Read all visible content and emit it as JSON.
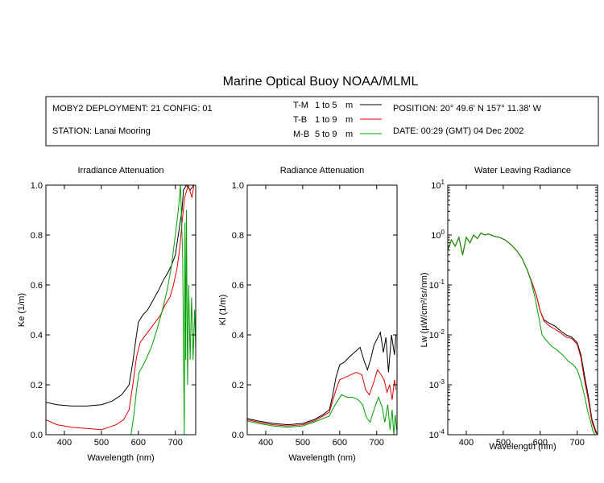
{
  "title": "Marine Optical Buoy NOAA/MLML",
  "info": {
    "deployment": "MOBY2 DEPLOYMENT: 21 CONFIG: 01",
    "station": "STATION: Lanai Mooring",
    "position": "POSITION: 20° 49.6' N   157° 11.38' W",
    "date": "DATE: 00:29 (GMT) 04 Dec 2002",
    "legend": [
      {
        "code": "T-M",
        "range": "1 to 5",
        "unit": "m",
        "color": "#000000"
      },
      {
        "code": "T-B",
        "range": "1 to 9",
        "unit": "m",
        "color": "#e00000"
      },
      {
        "code": "M-B",
        "range": "5 to 9",
        "unit": "m",
        "color": "#00a000"
      }
    ]
  },
  "chart_data": [
    {
      "type": "line",
      "title": "Irradiance Attenuation",
      "xlabel": "Wavelength (nm)",
      "ylabel": "Ke  (1/m)",
      "xlim": [
        350,
        755
      ],
      "ylim": [
        0,
        1.0
      ],
      "xticks": [
        400,
        500,
        600,
        700
      ],
      "yticks": [
        "0.0",
        "0.2",
        "0.4",
        "0.6",
        "0.8",
        "1.0"
      ],
      "yscale": "linear",
      "series": [
        {
          "name": "T-M",
          "color": "#000000",
          "x": [
            350,
            380,
            420,
            460,
            500,
            530,
            555,
            575,
            585,
            593,
            600,
            612,
            625,
            640,
            655,
            668,
            680,
            690,
            700,
            710,
            718,
            722,
            730,
            740,
            750
          ],
          "y": [
            0.13,
            0.12,
            0.115,
            0.115,
            0.12,
            0.135,
            0.16,
            0.2,
            0.29,
            0.38,
            0.45,
            0.48,
            0.5,
            0.54,
            0.58,
            0.62,
            0.65,
            0.68,
            0.72,
            0.82,
            0.9,
            0.98,
            1.0,
            0.98,
            1.0
          ]
        },
        {
          "name": "T-B",
          "color": "#e00000",
          "x": [
            350,
            380,
            420,
            460,
            500,
            520,
            540,
            560,
            575,
            585,
            595,
            605,
            615,
            630,
            645,
            660,
            672,
            685,
            695,
            705,
            712,
            718,
            725,
            735,
            745,
            750
          ],
          "y": [
            0.06,
            0.04,
            0.03,
            0.025,
            0.02,
            0.03,
            0.04,
            0.06,
            0.1,
            0.2,
            0.31,
            0.37,
            0.39,
            0.42,
            0.45,
            0.48,
            0.52,
            0.55,
            0.6,
            0.67,
            0.75,
            0.85,
            0.95,
            1.0,
            0.95,
            1.0
          ]
        },
        {
          "name": "M-B",
          "color": "#00a000",
          "x": [
            580,
            588,
            595,
            602,
            610,
            620,
            635,
            650,
            665,
            678,
            690,
            700,
            708,
            714,
            720,
            724,
            726,
            728,
            730,
            733,
            736,
            740,
            744,
            748,
            752,
            755
          ],
          "y": [
            0.0,
            0.08,
            0.18,
            0.25,
            0.27,
            0.3,
            0.35,
            0.42,
            0.5,
            0.58,
            0.68,
            0.8,
            0.9,
            1.0,
            0.7,
            0.0,
            0.85,
            0.3,
            0.9,
            0.2,
            0.6,
            0.3,
            0.55,
            0.3,
            0.5,
            0.35
          ]
        }
      ]
    },
    {
      "type": "line",
      "title": "Radiance Attenuation",
      "xlabel": "Wavelength (nm)",
      "ylabel": "Kl  (1/m)",
      "xlim": [
        350,
        755
      ],
      "ylim": [
        0,
        1.0
      ],
      "xticks": [
        400,
        500,
        600,
        700
      ],
      "yticks": [
        "0.0",
        "0.2",
        "0.4",
        "0.6",
        "0.8",
        "1.0"
      ],
      "yscale": "linear",
      "series": [
        {
          "name": "T-M",
          "color": "#000000",
          "x": [
            350,
            380,
            420,
            460,
            500,
            530,
            555,
            572,
            580,
            590,
            600,
            612,
            625,
            640,
            655,
            665,
            675,
            685,
            693,
            700,
            710,
            718,
            725,
            732,
            740,
            748,
            752
          ],
          "y": [
            0.065,
            0.055,
            0.045,
            0.04,
            0.045,
            0.06,
            0.08,
            0.1,
            0.15,
            0.23,
            0.28,
            0.29,
            0.31,
            0.33,
            0.35,
            0.3,
            0.26,
            0.31,
            0.36,
            0.38,
            0.41,
            0.33,
            0.39,
            0.25,
            0.4,
            0.32,
            0.4
          ]
        },
        {
          "name": "T-B",
          "color": "#e00000",
          "x": [
            350,
            380,
            420,
            460,
            500,
            530,
            555,
            572,
            580,
            590,
            600,
            615,
            630,
            645,
            660,
            670,
            680,
            692,
            702,
            712,
            720,
            728,
            735,
            742,
            748,
            752
          ],
          "y": [
            0.06,
            0.05,
            0.04,
            0.035,
            0.04,
            0.055,
            0.075,
            0.09,
            0.13,
            0.18,
            0.22,
            0.23,
            0.24,
            0.25,
            0.24,
            0.18,
            0.16,
            0.21,
            0.26,
            0.24,
            0.22,
            0.17,
            0.2,
            0.14,
            0.22,
            0.18
          ]
        },
        {
          "name": "M-B",
          "color": "#00a000",
          "x": [
            350,
            380,
            420,
            460,
            500,
            530,
            555,
            572,
            580,
            592,
            605,
            620,
            635,
            650,
            662,
            672,
            682,
            695,
            705,
            715,
            722,
            730,
            736,
            742,
            746,
            750,
            754
          ],
          "y": [
            0.055,
            0.045,
            0.035,
            0.03,
            0.035,
            0.05,
            0.065,
            0.075,
            0.1,
            0.13,
            0.16,
            0.15,
            0.15,
            0.14,
            0.12,
            0.07,
            0.05,
            0.11,
            0.15,
            0.11,
            0.05,
            0.12,
            0.02,
            0.1,
            0.0,
            0.08,
            0.02
          ]
        }
      ]
    },
    {
      "type": "line",
      "title": "Water Leaving Radiance",
      "xlabel": "Wavelength (nm)",
      "ylabel": "Lw  (µW/cm²/sr/nm)",
      "xlim": [
        350,
        755
      ],
      "ylim": [
        0.0001,
        10
      ],
      "xticks": [
        400,
        500,
        600,
        700
      ],
      "yticks": [
        "10^1",
        "10^0",
        "10^-1",
        "10^-2",
        "10^-3",
        "10^-4"
      ],
      "yscale": "log",
      "series": [
        {
          "name": "T-M",
          "color": "#000000",
          "x": [
            350,
            360,
            370,
            380,
            390,
            400,
            410,
            420,
            430,
            440,
            450,
            460,
            475,
            490,
            505,
            520,
            535,
            550,
            565,
            580,
            590,
            600,
            610,
            625,
            640,
            655,
            670,
            685,
            700,
            710,
            720,
            730,
            740,
            750,
            755
          ],
          "y": [
            0.5,
            0.8,
            0.6,
            0.9,
            0.4,
            0.9,
            0.7,
            1.0,
            0.85,
            1.1,
            1.0,
            1.05,
            0.95,
            0.9,
            0.8,
            0.65,
            0.5,
            0.35,
            0.2,
            0.1,
            0.06,
            0.03,
            0.02,
            0.017,
            0.015,
            0.012,
            0.01,
            0.009,
            0.007,
            0.004,
            0.0015,
            0.0006,
            0.0002,
            0.00012,
            0.0001
          ]
        },
        {
          "name": "T-B",
          "color": "#e00000",
          "x": [
            350,
            360,
            370,
            380,
            390,
            400,
            410,
            420,
            430,
            440,
            450,
            460,
            475,
            490,
            505,
            520,
            535,
            550,
            565,
            580,
            590,
            600,
            610,
            625,
            640,
            655,
            670,
            685,
            700,
            710,
            720,
            730,
            740,
            750,
            755
          ],
          "y": [
            0.5,
            0.8,
            0.6,
            0.9,
            0.4,
            0.9,
            0.7,
            1.0,
            0.85,
            1.1,
            1.0,
            1.05,
            0.95,
            0.9,
            0.8,
            0.65,
            0.5,
            0.35,
            0.2,
            0.1,
            0.06,
            0.03,
            0.019,
            0.015,
            0.013,
            0.011,
            0.009,
            0.0085,
            0.0065,
            0.0035,
            0.0012,
            0.0005,
            0.00018,
            0.00011,
            0.0001
          ]
        },
        {
          "name": "M-B",
          "color": "#00a000",
          "x": [
            350,
            360,
            370,
            380,
            390,
            400,
            410,
            420,
            430,
            440,
            450,
            460,
            475,
            490,
            505,
            520,
            535,
            550,
            565,
            575,
            585,
            595,
            605,
            615,
            630,
            645,
            660,
            675,
            690,
            700,
            710,
            720,
            728,
            735,
            742,
            748,
            752
          ],
          "y": [
            0.5,
            0.8,
            0.6,
            0.9,
            0.4,
            0.9,
            0.7,
            1.0,
            0.85,
            1.1,
            1.0,
            1.05,
            0.95,
            0.9,
            0.8,
            0.65,
            0.5,
            0.35,
            0.2,
            0.12,
            0.06,
            0.025,
            0.01,
            0.008,
            0.006,
            0.005,
            0.004,
            0.003,
            0.0025,
            0.002,
            0.0012,
            0.0006,
            0.0003,
            0.0002,
            0.00012,
            0.0001,
            0.0001
          ]
        }
      ]
    }
  ]
}
